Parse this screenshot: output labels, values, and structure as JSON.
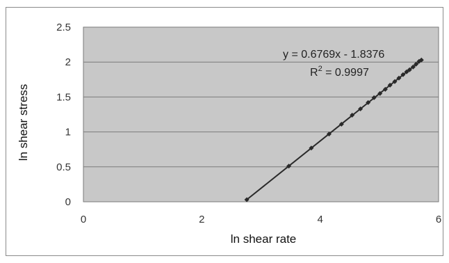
{
  "chart_data": {
    "type": "scatter",
    "title": "",
    "xlabel": "ln shear rate",
    "ylabel": "ln shear stress",
    "xlim": [
      0,
      6
    ],
    "ylim": [
      0,
      2.5
    ],
    "x_ticks": [
      0,
      2,
      4,
      6
    ],
    "y_ticks": [
      0,
      0.5,
      1,
      1.5,
      2,
      2.5
    ],
    "x_tick_labels": [
      "0",
      "2",
      "4",
      "6"
    ],
    "y_tick_labels": [
      "0",
      "0.5",
      "1",
      "1.5",
      "2",
      "2.5"
    ],
    "grid": "horizontal",
    "legend": "none",
    "series": [
      {
        "points": [
          {
            "x": 2.76,
            "y": 0.03
          },
          {
            "x": 3.47,
            "y": 0.51
          },
          {
            "x": 3.85,
            "y": 0.77
          },
          {
            "x": 4.15,
            "y": 0.97
          },
          {
            "x": 4.36,
            "y": 1.11
          },
          {
            "x": 4.54,
            "y": 1.24
          },
          {
            "x": 4.68,
            "y": 1.33
          },
          {
            "x": 4.81,
            "y": 1.42
          },
          {
            "x": 4.91,
            "y": 1.49
          },
          {
            "x": 5.01,
            "y": 1.55
          },
          {
            "x": 5.1,
            "y": 1.61
          },
          {
            "x": 5.18,
            "y": 1.67
          },
          {
            "x": 5.26,
            "y": 1.72
          },
          {
            "x": 5.33,
            "y": 1.77
          },
          {
            "x": 5.4,
            "y": 1.82
          },
          {
            "x": 5.46,
            "y": 1.86
          },
          {
            "x": 5.51,
            "y": 1.89
          },
          {
            "x": 5.57,
            "y": 1.93
          },
          {
            "x": 5.62,
            "y": 1.97
          },
          {
            "x": 5.67,
            "y": 2.01
          },
          {
            "x": 5.71,
            "y": 2.03
          }
        ]
      }
    ],
    "trendline": {
      "slope": 0.6769,
      "intercept": -1.8376,
      "x_start": 2.75,
      "x_end": 5.72
    },
    "annotations": {
      "equation": "y = 0.6769x - 1.8376",
      "r2_prefix": "R",
      "r2_sup": "2",
      "r2_value": " = 0.9997"
    },
    "colors": {
      "plot_background": "#c8c8c8",
      "gridline": "#7a7a7a",
      "marker": "#2a2a2a",
      "trendline": "#2a2a2a"
    }
  }
}
